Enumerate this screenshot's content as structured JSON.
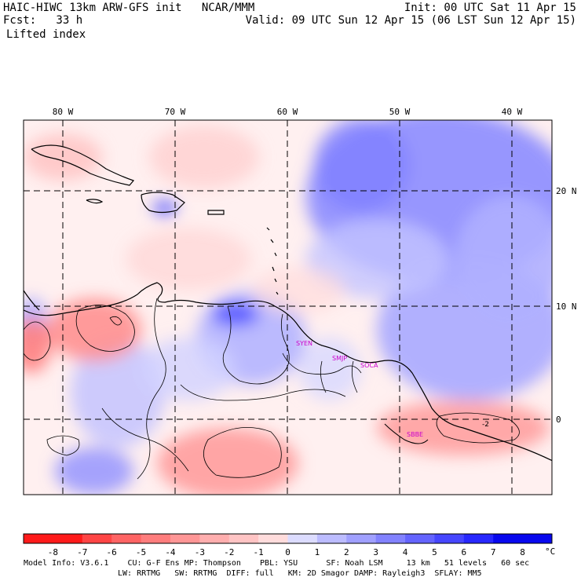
{
  "header": {
    "title_left": "HAIC-HIWC 13km ARW-GFS init   NCAR/MMM",
    "fcst": "Fcst:   33 h",
    "field": "Lifted index",
    "init": "Init: 00 UTC Sat 11 Apr 15",
    "valid": "Valid: 09 UTC Sun 12 Apr 15 (06 LST Sun 12 Apr 15)"
  },
  "map": {
    "lon_labels": [
      "80 W",
      "70 W",
      "60 W",
      "50 W",
      "40 W"
    ],
    "lat_labels": [
      "20 N",
      "10 N",
      "0"
    ],
    "stations": [
      "SYEN",
      "SMJP",
      "SOCA",
      "SBBE"
    ],
    "contour_label": "-2"
  },
  "colorbar": {
    "ticks": [
      "-8",
      "-7",
      "-6",
      "-5",
      "-4",
      "-3",
      "-2",
      "-1",
      "0",
      "1",
      "2",
      "3",
      "4",
      "5",
      "6",
      "7",
      "8"
    ],
    "unit": "°C",
    "colors": [
      "#ff1a1a",
      "#ff4545",
      "#ff6464",
      "#ff7d7d",
      "#ff9696",
      "#ffaeae",
      "#ffc4c4",
      "#ffdcdc",
      "#ffffff",
      "#dcdcff",
      "#bcbcff",
      "#a0a0ff",
      "#8282ff",
      "#6464ff",
      "#4646ff",
      "#2828ff",
      "#0808ee"
    ]
  },
  "footer": {
    "line1": "Model Info: V3.6.1    CU: G-F Ens MP: Thompson    PBL: YSU      SF: Noah LSM     13 km   51 levels   60 sec",
    "line2": "LW: RRTMG   SW: RRTMG  DIFF: full   KM: 2D Smagor DAMP: Rayleigh3  SFLAY: MM5"
  }
}
